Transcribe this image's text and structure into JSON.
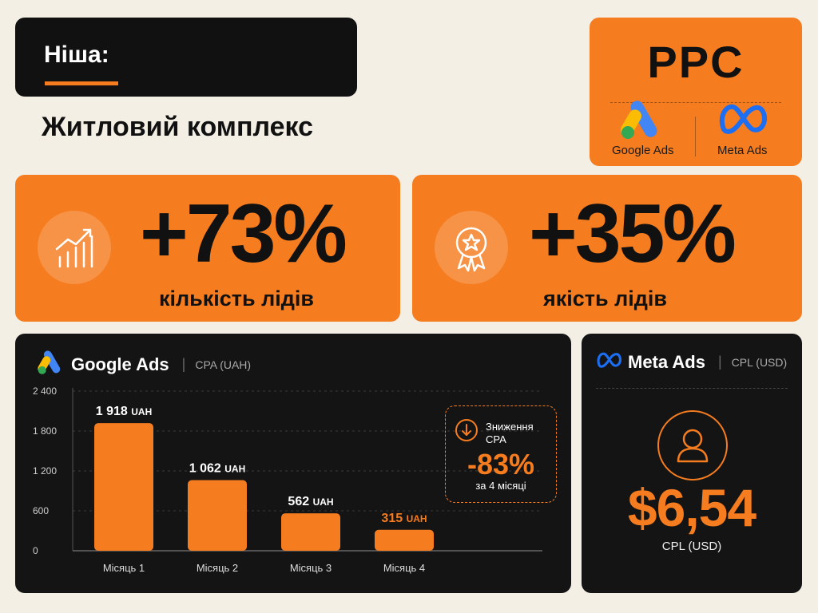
{
  "niche": {
    "label": "Ніша:",
    "value": "Житловий комплекс"
  },
  "ppc": {
    "title": "PPC",
    "platforms": [
      {
        "name": "Google Ads",
        "icon": "google-ads-icon"
      },
      {
        "name": "Meta Ads",
        "icon": "meta-icon"
      }
    ]
  },
  "kpis": [
    {
      "value": "+73%",
      "label": "кількість лідів",
      "icon": "growth-chart-icon"
    },
    {
      "value": "+35%",
      "label": "якість лідів",
      "icon": "award-ribbon-icon"
    }
  ],
  "google_panel": {
    "title": "Google Ads",
    "metric": "CPA (UAH)",
    "icon": "google-ads-icon"
  },
  "cpa_drop": {
    "label": "Зниження CPA",
    "value": "-83%",
    "period": "за 4 місяці",
    "icon": "arrow-down-icon"
  },
  "meta_panel": {
    "title": "Meta Ads",
    "metric": "CPL (USD)",
    "value": "$6,54",
    "unit": "CPL (USD)",
    "icon": "meta-icon"
  },
  "colors": {
    "accent": "#f57c1f",
    "dark": "#141414",
    "background": "#f3efe5",
    "text": "#111111"
  },
  "chart_data": {
    "type": "bar",
    "categories": [
      "Місяць 1",
      "Місяць 2",
      "Місяць 3",
      "Місяць 4"
    ],
    "values": [
      1918,
      1062,
      562,
      315
    ],
    "data_labels": [
      "1 918",
      "1 062",
      "562",
      "315"
    ],
    "value_unit": "UAH",
    "y_ticks": [
      "0",
      "600",
      "1 200",
      "1 800",
      "2 400"
    ],
    "y_tick_values": [
      0,
      600,
      1200,
      1800,
      2400
    ],
    "ylim": [
      0,
      2400
    ],
    "grid": true
  }
}
